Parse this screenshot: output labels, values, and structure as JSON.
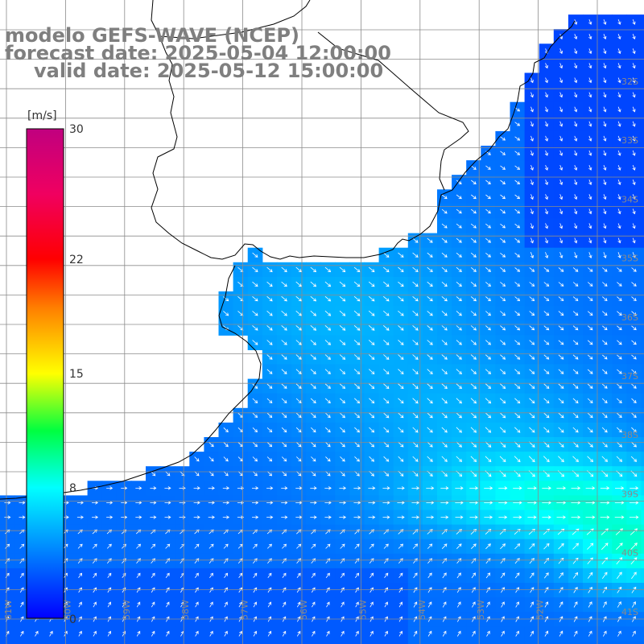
{
  "title": {
    "line1": "modelo GEFS-WAVE (NCEP)",
    "line2": "forecast date: 2025-05-04 12:00:00",
    "line3": "valid date: 2025-05-12 15:00:00"
  },
  "colorbar": {
    "unit": "[m/s]",
    "ticks": [
      {
        "value": 30,
        "label": "30"
      },
      {
        "value": 22,
        "label": "22"
      },
      {
        "value": 15,
        "label": "15"
      },
      {
        "value": 8,
        "label": "8"
      },
      {
        "value": 0,
        "label": "0"
      }
    ],
    "range": [
      0,
      30
    ],
    "stops": [
      {
        "value": 0,
        "color": "#0000ff"
      },
      {
        "value": 4,
        "color": "#0080ff"
      },
      {
        "value": 8,
        "color": "#00ffff"
      },
      {
        "value": 11.5,
        "color": "#00ff40"
      },
      {
        "value": 15,
        "color": "#ffff00"
      },
      {
        "value": 19,
        "color": "#ff8000"
      },
      {
        "value": 22,
        "color": "#ff0000"
      },
      {
        "value": 26,
        "color": "#f00060"
      },
      {
        "value": 30,
        "color": "#c0007f"
      }
    ]
  },
  "axes": {
    "lat_labels": [
      "32S",
      "33S",
      "34S",
      "35S",
      "36S",
      "37S",
      "38S",
      "39S",
      "40S",
      "41S"
    ],
    "lon_labels": [
      "61W",
      "60W",
      "59W",
      "58W",
      "57W",
      "56W",
      "55W",
      "54W",
      "53W",
      "52W"
    ]
  },
  "colors": {
    "coast": "#000000",
    "grid": "#8c8c8c",
    "arrow": "#ffffff",
    "title": "#7f7f7f"
  },
  "map_data": {
    "region": "Rio de la Plata and adjacent South Atlantic",
    "field": "wind speed (m/s) with direction arrows",
    "wind_direction": "from north-west, turning to south-west south of about 39S",
    "max_speed_m_s": 12
  }
}
